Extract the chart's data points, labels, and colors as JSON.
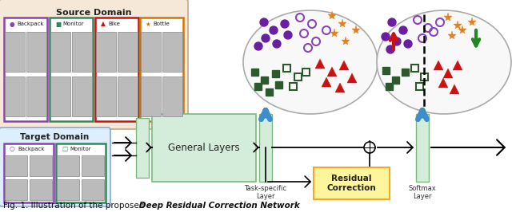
{
  "fig_width": 6.4,
  "fig_height": 2.66,
  "dpi": 100,
  "bg_color": "#ffffff",
  "caption_normal": "Fig. 1. Illustration of the proposed ",
  "caption_italic": "Deep Residual Correction Network",
  "source_domain_label": "Source Domain",
  "target_domain_label": "Target Domain",
  "general_layers_label": "General Layers",
  "task_specific_label": "Task-specific\nLayer",
  "residual_correction_label": "Residual\nCorrection",
  "softmax_label": "Softmax\nLayer",
  "source_categories": [
    "Backpack",
    "Monitor",
    "Bike",
    "Bottle"
  ],
  "source_cat_colors": [
    "#8844aa",
    "#2e8b57",
    "#cc1111",
    "#cc7700"
  ],
  "target_categories": [
    "Backpack",
    "Monitor"
  ],
  "target_cat_colors": [
    "#8844aa",
    "#2e8b57"
  ],
  "source_bg": "#f5e8d8",
  "source_border": "#c8a882",
  "target_bg": "#ddeeff",
  "target_border": "#88aacc",
  "general_layers_bg": "#d4edda",
  "general_layers_border": "#7cb87c",
  "thin_layer_bg": "#d4edda",
  "thin_layer_border": "#7cb87c",
  "residual_bg": "#fff59d",
  "residual_border": "#f9a825",
  "arrow_blue": "#3d8ec9",
  "purple_solid": "#6a1fa0",
  "purple_open": "#8844bb",
  "green_sq": "#2d5a2d",
  "orange_star": "#e08020",
  "red_tri": "#cc1111",
  "arrow_red": "#cc1111",
  "arrow_green": "#228822"
}
